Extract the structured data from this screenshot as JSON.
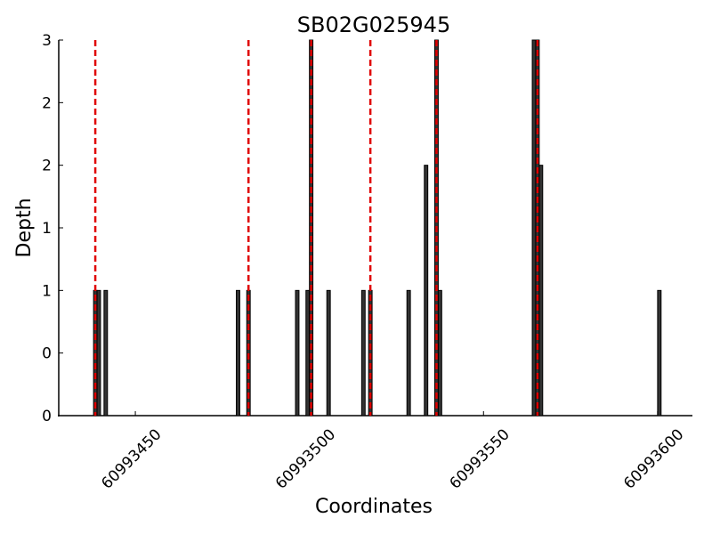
{
  "chart_data": {
    "type": "bar",
    "title": "SB02G025945",
    "x_label": "Coordinates",
    "y_label": "Depth",
    "x": [
      60993438,
      60993439,
      60993441,
      60993479,
      60993482,
      60993496,
      60993499,
      60993500,
      60993505,
      60993515,
      60993517,
      60993528,
      60993533,
      60993536,
      60993537,
      60993564,
      60993565,
      60993566,
      60993600
    ],
    "values": [
      1,
      1,
      1,
      1,
      1,
      1,
      1,
      3,
      1,
      1,
      1,
      1,
      2,
      3,
      1,
      3,
      3,
      2,
      1
    ],
    "bar_width": 1,
    "color": "#333333",
    "edge_color": "#000000",
    "vlines": {
      "x": [
        60993438.5,
        60993482.5,
        60993500.5,
        60993517.5,
        60993536.5,
        60993565.5
      ],
      "color": "#e00000"
    },
    "xlim": [
      60993428,
      60993610
    ],
    "xticks": [
      60993450,
      60993500,
      60993550,
      60993600
    ],
    "ylim": [
      0,
      3
    ],
    "yticks": [
      0,
      {
        "value": 0.5,
        "label": "0"
      },
      1,
      {
        "value": 1.5,
        "label": "1"
      },
      2,
      {
        "value": 2.5,
        "label": "2"
      },
      3
    ],
    "grid": false
  }
}
